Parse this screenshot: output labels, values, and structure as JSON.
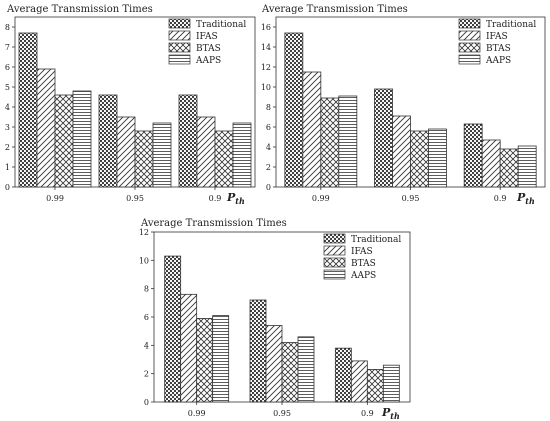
{
  "chart_data": [
    {
      "type": "bar",
      "title": "Average Transmission Times",
      "xlabel": "",
      "ylabel": "",
      "ylim": [
        0,
        8.5
      ],
      "yticks": [
        0,
        1,
        2,
        3,
        4,
        5,
        6,
        7,
        8
      ],
      "categories": [
        "0.99",
        "0.95",
        "0.9"
      ],
      "corner_label": "P_th",
      "legend_position": "top-right",
      "grid": false,
      "series": [
        {
          "name": "Traditional",
          "values": [
            7.7,
            4.6,
            4.6
          ],
          "pattern": "dots"
        },
        {
          "name": "IFAS",
          "values": [
            5.9,
            3.5,
            3.5
          ],
          "pattern": "diag"
        },
        {
          "name": "BTAS",
          "values": [
            4.6,
            2.8,
            2.8
          ],
          "pattern": "cross"
        },
        {
          "name": "AAPS",
          "values": [
            4.8,
            3.2,
            3.2
          ],
          "pattern": "hlines"
        }
      ]
    },
    {
      "type": "bar",
      "title": "Average Transmission Times",
      "xlabel": "",
      "ylabel": "",
      "ylim": [
        0,
        17
      ],
      "yticks": [
        0,
        2,
        4,
        6,
        8,
        10,
        12,
        14,
        16
      ],
      "categories": [
        "0.99",
        "0.95",
        "0.9"
      ],
      "corner_label": "P_th",
      "legend_position": "top-right",
      "grid": false,
      "series": [
        {
          "name": "Traditional",
          "values": [
            15.4,
            9.8,
            6.3
          ],
          "pattern": "dots"
        },
        {
          "name": "IFAS",
          "values": [
            11.5,
            7.1,
            4.7
          ],
          "pattern": "diag"
        },
        {
          "name": "BTAS",
          "values": [
            8.9,
            5.6,
            3.8
          ],
          "pattern": "cross"
        },
        {
          "name": "AAPS",
          "values": [
            9.1,
            5.8,
            4.1
          ],
          "pattern": "hlines"
        }
      ]
    },
    {
      "type": "bar",
      "title": "Average Transmission Times",
      "xlabel": "",
      "ylabel": "",
      "ylim": [
        0,
        12
      ],
      "yticks": [
        0,
        2,
        4,
        6,
        8,
        10,
        12
      ],
      "categories": [
        "0.99",
        "0.95",
        "0.9"
      ],
      "corner_label": "P_th",
      "legend_position": "top-right",
      "grid": false,
      "series": [
        {
          "name": "Traditional",
          "values": [
            10.3,
            7.2,
            3.8
          ],
          "pattern": "dots"
        },
        {
          "name": "IFAS",
          "values": [
            7.6,
            5.4,
            2.9
          ],
          "pattern": "diag"
        },
        {
          "name": "BTAS",
          "values": [
            5.9,
            4.2,
            2.3
          ],
          "pattern": "cross"
        },
        {
          "name": "AAPS",
          "values": [
            6.1,
            4.6,
            2.6
          ],
          "pattern": "hlines"
        }
      ]
    }
  ]
}
